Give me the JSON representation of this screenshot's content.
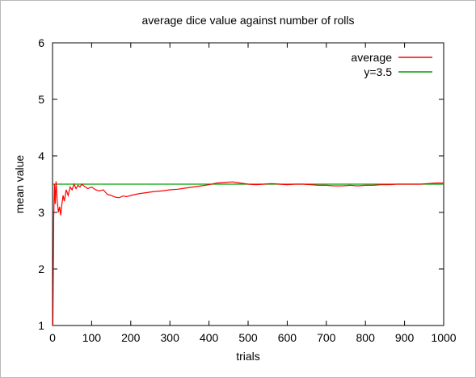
{
  "chart_data": {
    "type": "line",
    "title": "average dice value against number of rolls",
    "xlabel": "trials",
    "ylabel": "mean value",
    "xlim": [
      0,
      1000
    ],
    "ylim": [
      1,
      6
    ],
    "x_ticks": [
      "0",
      "100",
      "200",
      "300",
      "400",
      "500",
      "600",
      "700",
      "800",
      "900",
      "1000"
    ],
    "y_ticks": [
      "1",
      "2",
      "3",
      "4",
      "5",
      "6"
    ],
    "grid": false,
    "legend_position": "top-right",
    "series": [
      {
        "name": "average",
        "color": "#ff0000",
        "x": [
          1,
          3,
          5,
          7,
          9,
          12,
          15,
          18,
          21,
          24,
          27,
          30,
          35,
          40,
          45,
          50,
          55,
          60,
          65,
          70,
          75,
          80,
          90,
          100,
          110,
          120,
          130,
          140,
          150,
          160,
          170,
          180,
          190,
          200,
          220,
          240,
          260,
          280,
          300,
          320,
          340,
          360,
          380,
          400,
          420,
          440,
          460,
          480,
          500,
          520,
          540,
          560,
          580,
          600,
          620,
          640,
          660,
          680,
          700,
          720,
          740,
          760,
          780,
          800,
          820,
          840,
          860,
          880,
          900,
          920,
          940,
          960,
          980,
          1000
        ],
        "y": [
          1.0,
          2.9,
          3.5,
          3.15,
          3.55,
          3.2,
          3.0,
          3.1,
          2.95,
          3.15,
          3.3,
          3.2,
          3.4,
          3.3,
          3.45,
          3.4,
          3.5,
          3.42,
          3.48,
          3.45,
          3.5,
          3.47,
          3.42,
          3.45,
          3.4,
          3.38,
          3.4,
          3.32,
          3.3,
          3.27,
          3.26,
          3.29,
          3.28,
          3.3,
          3.33,
          3.35,
          3.37,
          3.38,
          3.4,
          3.41,
          3.43,
          3.45,
          3.47,
          3.49,
          3.52,
          3.53,
          3.54,
          3.52,
          3.5,
          3.49,
          3.5,
          3.51,
          3.5,
          3.49,
          3.5,
          3.5,
          3.49,
          3.48,
          3.48,
          3.47,
          3.47,
          3.48,
          3.47,
          3.48,
          3.48,
          3.49,
          3.49,
          3.5,
          3.5,
          3.5,
          3.5,
          3.51,
          3.52,
          3.52
        ]
      },
      {
        "name": "y=3.5",
        "color": "#00a000",
        "x": [
          0,
          1000
        ],
        "y": [
          3.5,
          3.5
        ]
      }
    ]
  }
}
